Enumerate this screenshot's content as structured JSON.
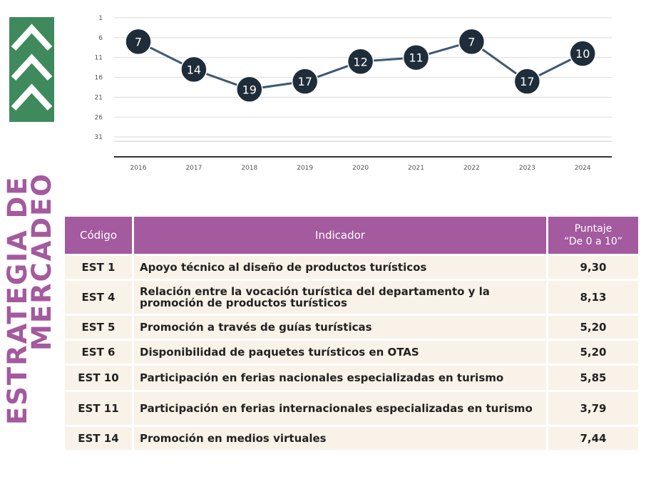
{
  "side_title": {
    "line1": "ESTRATEGIA DE",
    "line2": "MERCADEO"
  },
  "colors": {
    "accent": "#a35a9e",
    "logo_green": "#3e8a5c",
    "point_fill": "#1f2d3a",
    "row_bg": "#f9f2e8"
  },
  "chart_data": {
    "type": "line",
    "title": "",
    "xlabel": "",
    "ylabel": "",
    "x": [
      "2016",
      "2017",
      "2018",
      "2019",
      "2020",
      "2021",
      "2022",
      "2023",
      "2024"
    ],
    "values": [
      7,
      14,
      19,
      17,
      12,
      11,
      7,
      17,
      10
    ],
    "yticks": [
      "1",
      "6",
      "11",
      "16",
      "21",
      "26",
      "31"
    ],
    "ylim": [
      1,
      36
    ],
    "inverted_y": true,
    "grid": true,
    "data_labels": true
  },
  "table": {
    "headers": {
      "code": "Código",
      "indicator": "Indicador",
      "score_line1": "Puntaje",
      "score_line2": "“De 0 a 10”"
    },
    "rows": [
      {
        "code": "EST 1",
        "indicator": "Apoyo técnico al diseño de productos turísticos",
        "score": "9,30"
      },
      {
        "code": "EST 4",
        "indicator": "Relación entre la vocación turística del departamento y la promoción de productos turísticos",
        "score": "8,13"
      },
      {
        "code": "EST 5",
        "indicator": "Promoción a través de guías turísticas",
        "score": "5,20"
      },
      {
        "code": "EST 6",
        "indicator": "Disponibilidad de paquetes turísticos en OTAS",
        "score": "5,20"
      },
      {
        "code": "EST 10",
        "indicator": "Participación en ferias nacionales especializadas en turismo",
        "score": "5,85"
      },
      {
        "code": "EST 11",
        "indicator": "Participación en ferias internacionales especializadas en turismo",
        "score": "3,79"
      },
      {
        "code": "EST 14",
        "indicator": "Promoción en medios virtuales",
        "score": "7,44"
      }
    ]
  }
}
